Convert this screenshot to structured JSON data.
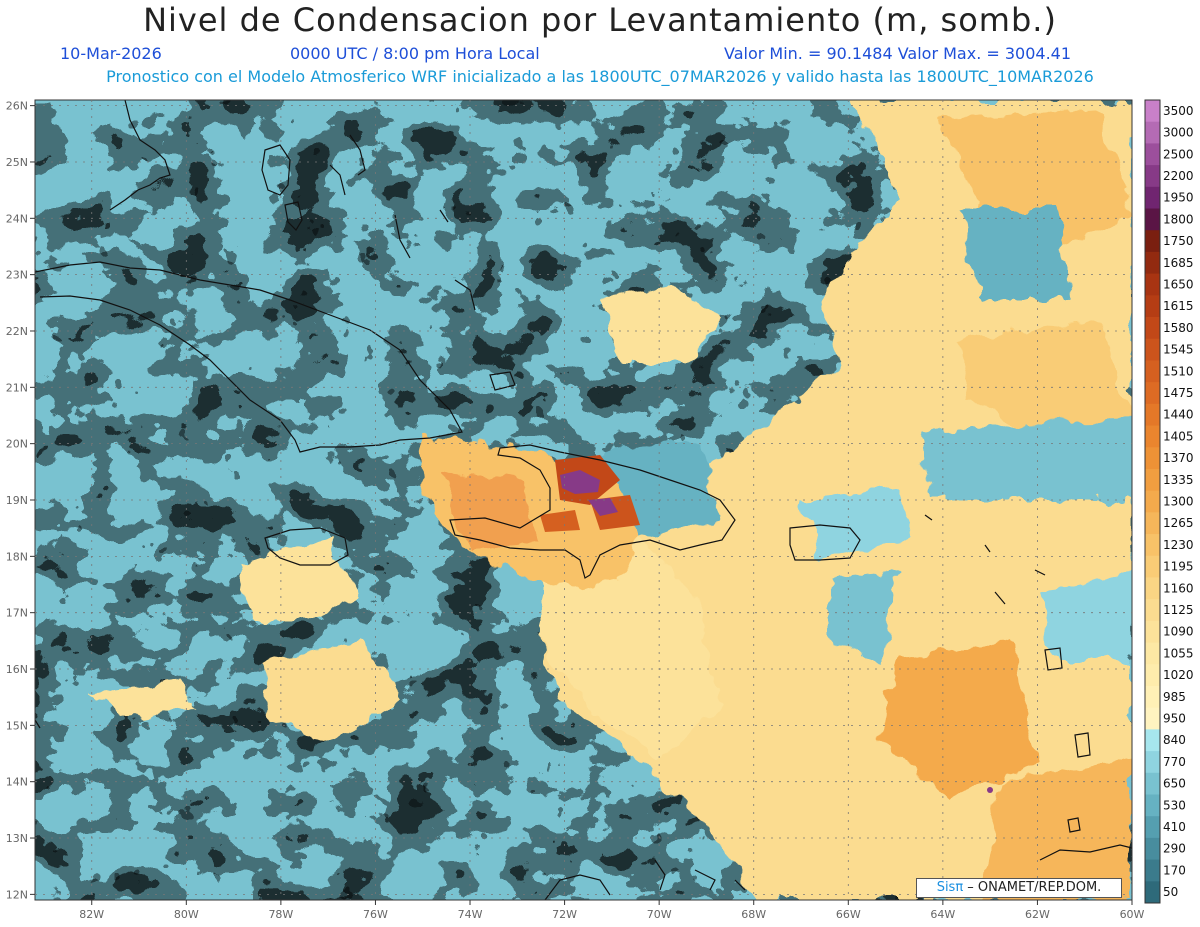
{
  "title": "Nivel de Condensacion por Levantamiento (m, somb.)",
  "date": "10-Mar-2026",
  "time": "0000 UTC / 8:00 pm Hora Local",
  "minmax": "Valor Min. = 90.1484  Valor Max. = 3004.41",
  "forecast_line": "Pronostico con el Modelo Atmosferico WRF inicializado a las 1800UTC_07MAR2026 y valido hasta las  1800UTC_10MAR2026",
  "lon_labels": [
    "82W",
    "80W",
    "78W",
    "76W",
    "74W",
    "72W",
    "70W",
    "68W",
    "66W",
    "64W",
    "62W",
    "60W"
  ],
  "lat_labels": [
    "26N",
    "25N",
    "24N",
    "23N",
    "22N",
    "21N",
    "20N",
    "19N",
    "18N",
    "17N",
    "16N",
    "15N",
    "14N",
    "13N",
    "12N"
  ],
  "colorbar": {
    "labels": [
      "3500",
      "3000",
      "2500",
      "2200",
      "1950",
      "1800",
      "1750",
      "1685",
      "1650",
      "1615",
      "1580",
      "1545",
      "1510",
      "1475",
      "1440",
      "1405",
      "1370",
      "1335",
      "1300",
      "1265",
      "1230",
      "1195",
      "1160",
      "1125",
      "1090",
      "1055",
      "1020",
      "985",
      "950",
      "840",
      "770",
      "650",
      "530",
      "410",
      "290",
      "170",
      "50"
    ],
    "colors": [
      "#c980c9",
      "#b46bb4",
      "#9c4f9c",
      "#873a87",
      "#702570",
      "#5a1545",
      "#7a1f10",
      "#922a10",
      "#a83412",
      "#b53d14",
      "#c24818",
      "#cc541c",
      "#d56020",
      "#dd6b24",
      "#e47828",
      "#ea852e",
      "#ee9236",
      "#f19e40",
      "#f4aa4c",
      "#f6b65a",
      "#f8c268",
      "#f9cc76",
      "#fad584",
      "#fbdc90",
      "#fce29a",
      "#fde8a4",
      "#feecac",
      "#fff0b6",
      "#fff3c0",
      "#a6e6ee",
      "#8fd4e0",
      "#79c2d0",
      "#66b2c2",
      "#559fb0",
      "#488d9e",
      "#3b7b8c",
      "#2e6a7a"
    ]
  },
  "credit": {
    "brand": "Sisπ",
    "org": " – ONAMET/REP.DOM."
  }
}
